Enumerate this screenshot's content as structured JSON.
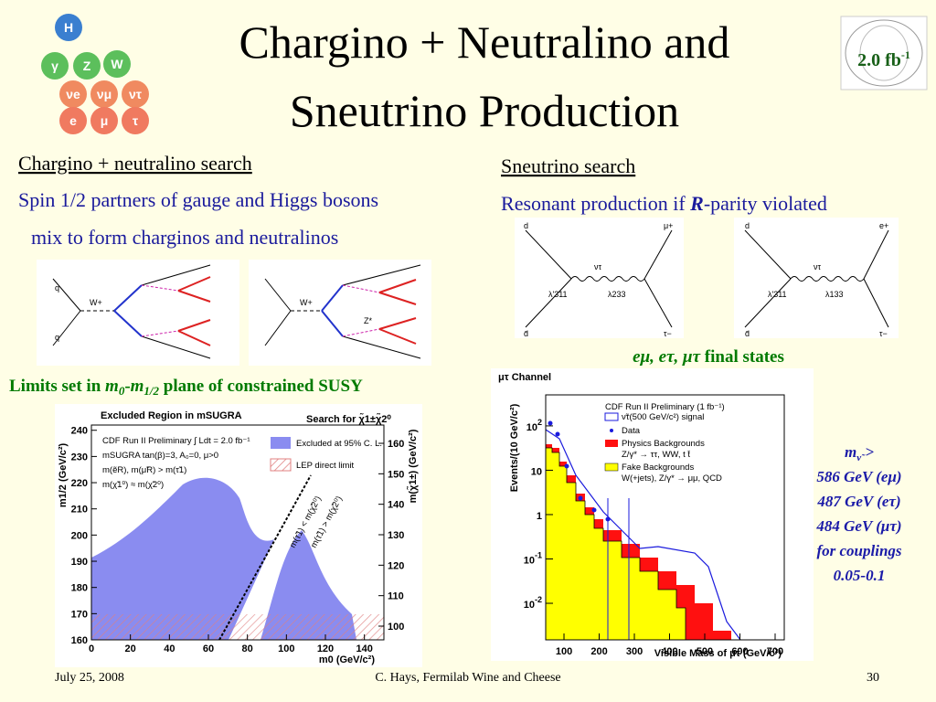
{
  "header": {
    "title_line1": "Chargino + Neutralino and",
    "title_line2": "Sneutrino Production",
    "badge": "2.0 fb",
    "badge_sup": "-1"
  },
  "particles": [
    "H",
    "γ",
    "Z",
    "W",
    "νe",
    "νμ",
    "ντ",
    "e",
    "μ",
    "τ"
  ],
  "left": {
    "heading": "Chargino + neutralino search",
    "lines": [
      "Spin 1/2 partners of gauge and Higgs bosons",
      "mix to form charginos and neutralinos"
    ],
    "limits": {
      "pre": "Limits set in ",
      "m0": "m",
      "m0_sub": "0",
      "dash": "-",
      "m12": "m",
      "m12_sub": "1/2",
      "post": " plane of constrained SUSY"
    },
    "diagram_labels": [
      "q",
      "q",
      "W+",
      "W+",
      "Z*"
    ]
  },
  "right": {
    "heading": "Sneutrino search",
    "line_pre": "R",
    "line_mid": "esonant production if ",
    "line_R": "R",
    "line_post": "-parity violated",
    "final_states": "eμ, eτ, μτ",
    "final_post": " final states",
    "diagram1": [
      "d",
      "μ+",
      "ντ",
      "λ'311",
      "λ233",
      "d̄",
      "τ−"
    ],
    "diagram2": [
      "d",
      "e+",
      "ντ",
      "λ'311",
      "λ133",
      "d̄",
      "τ−"
    ]
  },
  "limits_box": {
    "m": "m",
    "m_sub": "ν̃",
    "gt": " >",
    "lines": [
      "586 GeV (eμ)",
      "487 GeV (eτ)",
      "484 GeV (μτ)",
      "for couplings",
      "0.05-0.1"
    ]
  },
  "footer": {
    "date": "July 25, 2008",
    "author": "C. Hays, Fermilab Wine and Cheese",
    "page": "30"
  },
  "chart_data": [
    {
      "type": "region",
      "title": "Excluded Region in mSUGRA",
      "subtitle": "Search for χ̃1±χ̃2⁰",
      "x_label": "m0 (GeV/c²)",
      "y_label": "m1/2 (GeV/c²)",
      "y2_label": "m(χ̃1±) (GeV/c²)",
      "xlim": [
        0,
        150
      ],
      "xticks": [
        0,
        20,
        40,
        60,
        80,
        100,
        120,
        140
      ],
      "ylim": [
        160,
        242
      ],
      "yticks": [
        160,
        170,
        180,
        190,
        200,
        210,
        220,
        230,
        240
      ],
      "y2lim": [
        95.5,
        166
      ],
      "y2ticks": [
        100,
        110,
        120,
        130,
        140,
        150,
        160
      ],
      "annotations": [
        "CDF Run II Preliminary ∫ Ldt = 2.0 fb⁻¹",
        "mSUGRA tan(β)=3, A₀=0, μ>0",
        "m(ẽR), m(μ̃R) > m(τ̃1)",
        "m(χ̃1⁰) ≈ m(χ̃2⁰)",
        "m(τ̃1) < m(χ̃2⁰)",
        "m(τ̃1) > m(χ̃2⁰)"
      ],
      "legend": [
        "Excluded at 95% C. L.",
        "LEP direct limit"
      ]
    },
    {
      "type": "histogram",
      "title": "μτ Channel",
      "x_label": "Visible Mass of μτ (GeV/c²)",
      "y_label": "Events/(10 GeV/c²)",
      "log_y": true,
      "xlim": [
        48,
        726
      ],
      "xticks": [
        100,
        200,
        300,
        400,
        500,
        600,
        700
      ],
      "ylim": [
        0.0015,
        500
      ],
      "yticks": [
        {
          "value": 0.01,
          "label": "10",
          "exp": "-2"
        },
        {
          "value": 0.1,
          "label": "10",
          "exp": "-1"
        },
        1,
        10,
        {
          "value": 100,
          "label": "10",
          "exp": "2"
        }
      ],
      "legend_title": "CDF Run II Preliminary (1 fb⁻¹)",
      "legend": [
        "ν̃τ(500 GeV/c²) signal",
        "Data",
        "Physics Backgrounds",
        "Z/γ* → ττ, WW, t t̄",
        "Fake Backgrounds",
        "W(+jets), Z/γ* → μμ, QCD"
      ]
    }
  ]
}
